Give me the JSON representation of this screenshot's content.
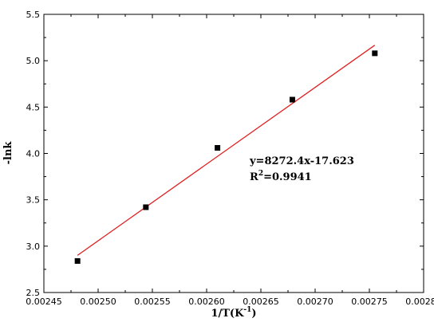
{
  "chart_data": {
    "type": "scatter",
    "xlabel": "1/T(K",
    "xlabel_sup": "-1",
    "xlabel_end": ")",
    "ylabel": "-lnk",
    "xlim": [
      0.00245,
      0.0028
    ],
    "ylim": [
      2.5,
      5.5
    ],
    "xticks": [
      "0.00245",
      "0.00250",
      "0.00255",
      "0.00260",
      "0.00265",
      "0.00270",
      "0.00275",
      "0.00280"
    ],
    "yticks": [
      "2.5",
      "3.0",
      "3.5",
      "4.0",
      "4.5",
      "5.0",
      "5.5"
    ],
    "xtick_values": [
      0.00245,
      0.0025,
      0.00255,
      0.0026,
      0.00265,
      0.0027,
      0.00275,
      0.0028
    ],
    "ytick_values": [
      2.5,
      3.0,
      3.5,
      4.0,
      4.5,
      5.0,
      5.5
    ],
    "points": [
      {
        "x": 0.002481,
        "y": 2.84
      },
      {
        "x": 0.002544,
        "y": 3.42
      },
      {
        "x": 0.00261,
        "y": 4.06
      },
      {
        "x": 0.002679,
        "y": 4.58
      },
      {
        "x": 0.002755,
        "y": 5.08
      }
    ],
    "fit_line": {
      "slope": 8272.4,
      "intercept": -17.623,
      "x_range": [
        0.002481,
        0.002755
      ],
      "color": "#e02020"
    },
    "marker_color": "#000000",
    "equation_text": "y=8272.4x-17.623",
    "r2_prefix": "R",
    "r2_sup": "2",
    "r2_value": "=0.9941",
    "grid": false,
    "legend": "none"
  }
}
